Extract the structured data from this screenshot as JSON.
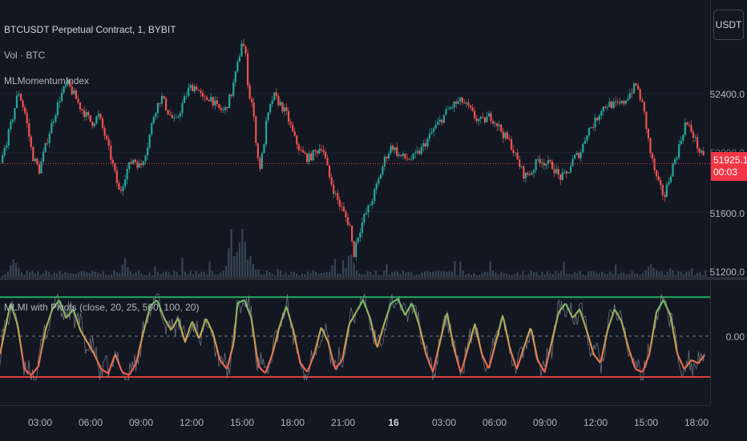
{
  "legend": {
    "symbol": "BTCUSDT Perpetual Contract, 1, BYBIT",
    "volume": "Vol · BTC",
    "indicator": "MLMomentumIndex",
    "oscillator": "MLMI with Pivots (close, 20, 25, 500, 100, 20)"
  },
  "currency_button": "USDT",
  "price_scale": {
    "labels": [
      "52400.0",
      "51600.0",
      "51200.0"
    ],
    "last_price": "51925.1",
    "countdown": "00:03",
    "partial_label": "52000.0"
  },
  "osc_scale": {
    "zero_label": "0.00"
  },
  "time_axis": {
    "labels": [
      "03:00",
      "06:00",
      "09:00",
      "12:00",
      "15:00",
      "18:00",
      "21:00",
      "16",
      "03:00",
      "06:00",
      "09:00",
      "12:00",
      "15:00",
      "18:00"
    ]
  },
  "colors": {
    "background": "#131722",
    "candle_up": "#26a69a",
    "candle_down": "#ef5350",
    "volume": "#3c4a5a",
    "upper_band": "#22ab5c",
    "lower_band": "#e0403a",
    "last_price": "#f23645",
    "osc_high": "#66bb6a",
    "osc_mid": "#c9a253",
    "osc_low": "#ef5350"
  },
  "chart_data": [
    {
      "type": "candlestick",
      "title": "BTCUSDT Perpetual Contract, 1, BYBIT",
      "x_range": [
        "02:00",
        "18:40"
      ],
      "ylim": [
        51100,
        52900
      ],
      "y_ticks": [
        51200,
        51600,
        52000,
        52400
      ],
      "last_price": 51925.1,
      "close_path": [
        [
          0,
          51930
        ],
        [
          3,
          52200
        ],
        [
          5,
          52420
        ],
        [
          7,
          52260
        ],
        [
          9,
          51980
        ],
        [
          11,
          51880
        ],
        [
          14,
          52150
        ],
        [
          17,
          52380
        ],
        [
          19,
          52470
        ],
        [
          21,
          52390
        ],
        [
          23,
          52300
        ],
        [
          26,
          52200
        ],
        [
          28,
          52250
        ],
        [
          30,
          52100
        ],
        [
          32,
          51920
        ],
        [
          34,
          51720
        ],
        [
          36,
          51880
        ],
        [
          38,
          51960
        ],
        [
          40,
          51900
        ],
        [
          42,
          52050
        ],
        [
          44,
          52280
        ],
        [
          46,
          52380
        ],
        [
          48,
          52270
        ],
        [
          50,
          52200
        ],
        [
          52,
          52330
        ],
        [
          54,
          52440
        ],
        [
          56,
          52450
        ],
        [
          58,
          52350
        ],
        [
          60,
          52380
        ],
        [
          62,
          52300
        ],
        [
          64,
          52280
        ],
        [
          66,
          52400
        ],
        [
          68,
          52620
        ],
        [
          69,
          52760
        ],
        [
          70,
          52680
        ],
        [
          71,
          52400
        ],
        [
          72,
          52330
        ],
        [
          73,
          52100
        ],
        [
          74,
          51880
        ],
        [
          75,
          52000
        ],
        [
          76,
          52200
        ],
        [
          78,
          52390
        ],
        [
          80,
          52330
        ],
        [
          82,
          52250
        ],
        [
          84,
          52100
        ],
        [
          86,
          52000
        ],
        [
          88,
          51960
        ],
        [
          90,
          52000
        ],
        [
          92,
          52050
        ],
        [
          94,
          51840
        ],
        [
          96,
          51700
        ],
        [
          98,
          51600
        ],
        [
          100,
          51500
        ],
        [
          101,
          51300
        ],
        [
          102,
          51420
        ],
        [
          104,
          51560
        ],
        [
          106,
          51660
        ],
        [
          108,
          51800
        ],
        [
          110,
          51960
        ],
        [
          112,
          52050
        ],
        [
          114,
          51980
        ],
        [
          116,
          51960
        ],
        [
          118,
          51960
        ],
        [
          120,
          52010
        ],
        [
          122,
          52080
        ],
        [
          124,
          52160
        ],
        [
          126,
          52220
        ],
        [
          128,
          52290
        ],
        [
          130,
          52330
        ],
        [
          132,
          52350
        ],
        [
          134,
          52300
        ],
        [
          136,
          52230
        ],
        [
          138,
          52210
        ],
        [
          140,
          52250
        ],
        [
          142,
          52200
        ],
        [
          144,
          52120
        ],
        [
          146,
          52060
        ],
        [
          148,
          51940
        ],
        [
          150,
          51840
        ],
        [
          152,
          51870
        ],
        [
          154,
          51960
        ],
        [
          156,
          51930
        ],
        [
          158,
          51910
        ],
        [
          160,
          51830
        ],
        [
          162,
          51850
        ],
        [
          164,
          51960
        ],
        [
          166,
          52000
        ],
        [
          168,
          52150
        ],
        [
          170,
          52200
        ],
        [
          172,
          52300
        ],
        [
          174,
          52330
        ],
        [
          176,
          52320
        ],
        [
          178,
          52330
        ],
        [
          180,
          52400
        ],
        [
          182,
          52460
        ],
        [
          184,
          52300
        ],
        [
          186,
          52000
        ],
        [
          188,
          51800
        ],
        [
          190,
          51700
        ],
        [
          192,
          51880
        ],
        [
          194,
          52020
        ],
        [
          196,
          52200
        ],
        [
          198,
          52140
        ],
        [
          200,
          52010
        ],
        [
          202,
          51925
        ]
      ],
      "volume_spikes": [
        [
          4,
          0.35
        ],
        [
          36,
          0.3
        ],
        [
          66,
          0.9
        ],
        [
          69,
          1.0
        ],
        [
          72,
          0.4
        ],
        [
          100,
          0.45
        ],
        [
          186,
          0.3
        ]
      ]
    },
    {
      "type": "line",
      "title": "MLMI with Pivots (close, 20, 25, 500, 100, 20)",
      "ylim": [
        -1.0,
        1.0
      ],
      "upper_band": 0.65,
      "lower_band": -0.68,
      "zero_line": 0,
      "mlmi_path": [
        [
          0,
          -0.3
        ],
        [
          3,
          0.55
        ],
        [
          5,
          0.2
        ],
        [
          7,
          -0.55
        ],
        [
          9,
          -0.65
        ],
        [
          11,
          -0.5
        ],
        [
          13,
          0.1
        ],
        [
          15,
          0.45
        ],
        [
          17,
          0.6
        ],
        [
          19,
          0.3
        ],
        [
          21,
          0.45
        ],
        [
          23,
          0.1
        ],
        [
          25,
          -0.1
        ],
        [
          27,
          -0.3
        ],
        [
          29,
          -0.55
        ],
        [
          31,
          -0.62
        ],
        [
          33,
          -0.3
        ],
        [
          35,
          -0.6
        ],
        [
          37,
          -0.65
        ],
        [
          39,
          -0.45
        ],
        [
          41,
          0.05
        ],
        [
          43,
          0.5
        ],
        [
          45,
          0.6
        ],
        [
          47,
          0.3
        ],
        [
          49,
          0.1
        ],
        [
          51,
          0.3
        ],
        [
          53,
          -0.1
        ],
        [
          55,
          0.25
        ],
        [
          57,
          -0.05
        ],
        [
          59,
          0.3
        ],
        [
          61,
          0.05
        ],
        [
          63,
          -0.4
        ],
        [
          65,
          -0.55
        ],
        [
          67,
          -0.1
        ],
        [
          68,
          0.55
        ],
        [
          70,
          0.6
        ],
        [
          72,
          0.3
        ],
        [
          74,
          -0.5
        ],
        [
          76,
          -0.62
        ],
        [
          78,
          -0.3
        ],
        [
          80,
          0.15
        ],
        [
          82,
          0.5
        ],
        [
          84,
          0.1
        ],
        [
          86,
          -0.45
        ],
        [
          88,
          -0.6
        ],
        [
          90,
          -0.3
        ],
        [
          92,
          0.15
        ],
        [
          94,
          -0.1
        ],
        [
          96,
          -0.55
        ],
        [
          98,
          -0.4
        ],
        [
          100,
          0.2
        ],
        [
          102,
          0.4
        ],
        [
          104,
          0.6
        ],
        [
          106,
          0.3
        ],
        [
          108,
          -0.2
        ],
        [
          110,
          0.2
        ],
        [
          112,
          0.55
        ],
        [
          114,
          0.62
        ],
        [
          116,
          0.35
        ],
        [
          118,
          0.55
        ],
        [
          120,
          0.2
        ],
        [
          122,
          -0.3
        ],
        [
          124,
          -0.6
        ],
        [
          126,
          -0.1
        ],
        [
          128,
          0.4
        ],
        [
          130,
          -0.2
        ],
        [
          132,
          -0.62
        ],
        [
          134,
          -0.2
        ],
        [
          136,
          0.2
        ],
        [
          138,
          -0.3
        ],
        [
          140,
          -0.55
        ],
        [
          142,
          -0.1
        ],
        [
          144,
          0.35
        ],
        [
          146,
          -0.2
        ],
        [
          148,
          -0.55
        ],
        [
          150,
          -0.2
        ],
        [
          152,
          0.15
        ],
        [
          154,
          -0.4
        ],
        [
          156,
          -0.6
        ],
        [
          158,
          -0.1
        ],
        [
          160,
          0.4
        ],
        [
          162,
          0.55
        ],
        [
          164,
          0.3
        ],
        [
          166,
          0.45
        ],
        [
          168,
          0.1
        ],
        [
          170,
          -0.3
        ],
        [
          172,
          -0.45
        ],
        [
          174,
          0.1
        ],
        [
          176,
          0.45
        ],
        [
          178,
          0.25
        ],
        [
          180,
          -0.2
        ],
        [
          182,
          -0.55
        ],
        [
          184,
          -0.6
        ],
        [
          186,
          -0.3
        ],
        [
          188,
          0.4
        ],
        [
          190,
          0.6
        ],
        [
          192,
          0.35
        ],
        [
          194,
          -0.3
        ],
        [
          196,
          -0.55
        ],
        [
          198,
          -0.4
        ],
        [
          200,
          -0.45
        ],
        [
          202,
          -0.3
        ]
      ]
    }
  ]
}
